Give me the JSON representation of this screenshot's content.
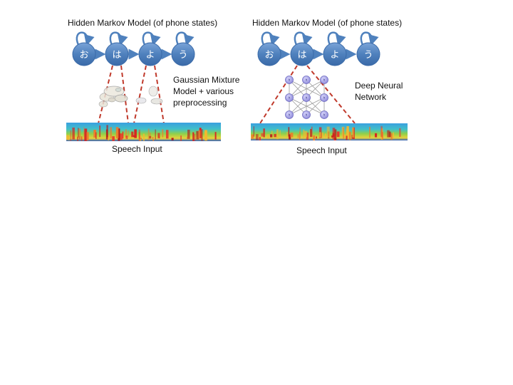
{
  "left": {
    "title": "Hidden Markov Model (of phone states)",
    "states": [
      "お",
      "は",
      "よ",
      "う"
    ],
    "model_label_lines": [
      "Gaussian Mixture",
      "Model + various",
      "preprocessing"
    ],
    "caption": "Speech Input"
  },
  "right": {
    "title": "Hidden Markov Model (of phone states)",
    "states": [
      "お",
      "は",
      "よ",
      "う"
    ],
    "model_label_lines": [
      "Deep Neural",
      "Network"
    ],
    "caption": "Speech Input",
    "unit_labels": [
      "h",
      "h",
      "h",
      "h",
      "h",
      "h",
      "h",
      "h",
      "h"
    ]
  },
  "colors": {
    "state_fill": "#4f81bd",
    "arrow": "#4f81bd",
    "dashed": "#c0392b",
    "neuron": "#a9a6e8"
  }
}
